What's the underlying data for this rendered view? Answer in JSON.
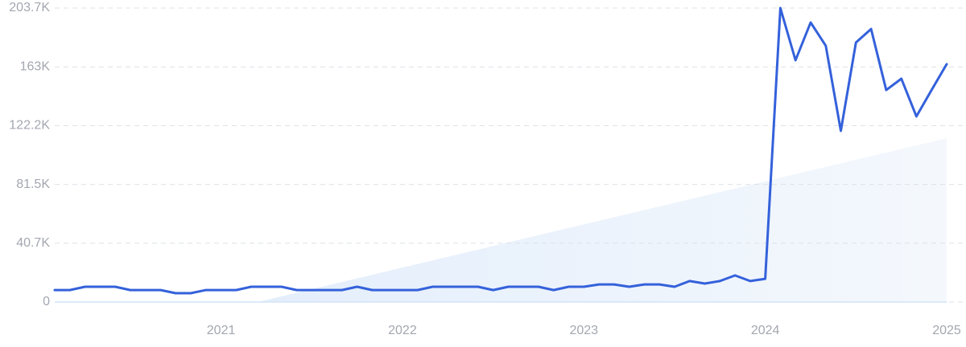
{
  "chart_data": {
    "type": "line",
    "categories": [
      null,
      null,
      null,
      null,
      null,
      null,
      null,
      null,
      null,
      null,
      null,
      "2021",
      null,
      null,
      null,
      null,
      null,
      null,
      null,
      null,
      null,
      null,
      null,
      "2022",
      null,
      null,
      null,
      null,
      null,
      null,
      null,
      null,
      null,
      null,
      null,
      "2023",
      null,
      null,
      null,
      null,
      null,
      null,
      null,
      null,
      null,
      null,
      null,
      "2024",
      null,
      null,
      null,
      null,
      null,
      null,
      null,
      null,
      null,
      null,
      null,
      "2025"
    ],
    "series": [
      {
        "color": "#3461db",
        "values": [
          8300,
          8300,
          10600,
          10600,
          10600,
          8300,
          8300,
          8300,
          6100,
          6100,
          8300,
          8300,
          8300,
          10600,
          10600,
          10600,
          8300,
          8300,
          8300,
          8300,
          10600,
          8300,
          8300,
          8300,
          8300,
          10600,
          10600,
          10600,
          10600,
          8300,
          10600,
          10600,
          10600,
          8300,
          10600,
          10600,
          12200,
          12200,
          10600,
          12200,
          12200,
          10600,
          14500,
          12800,
          14500,
          18400,
          14500,
          16100,
          203700,
          167500,
          193700,
          177600,
          118600,
          179800,
          189200,
          146900,
          154700,
          128600,
          146900,
          164800
        ]
      }
    ],
    "ylim": [
      0,
      203700
    ],
    "yticks": [
      0,
      {
        "value": 40740,
        "label": "40.7K"
      },
      {
        "value": 81480,
        "label": "81.5K"
      },
      {
        "value": 122220,
        "label": "122.2K"
      },
      {
        "value": 162960,
        "label": "163K"
      },
      {
        "value": 203700,
        "label": "203.7K"
      }
    ],
    "grid": true
  }
}
